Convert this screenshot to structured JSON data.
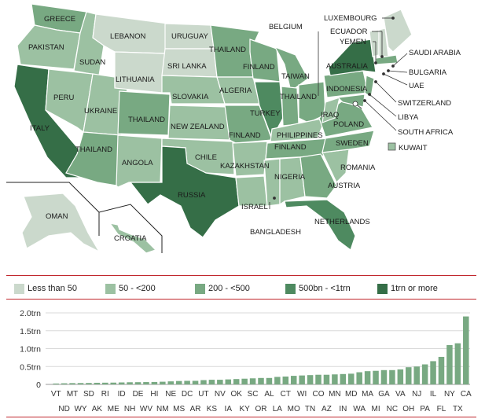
{
  "legend": {
    "items": [
      {
        "label": "Less than 50",
        "color": "#cbd9cc"
      },
      {
        "label": "50 - <200",
        "color": "#9cc1a2"
      },
      {
        "label": "200 - <500",
        "color": "#78a982"
      },
      {
        "label": "500bn - <1trn",
        "color": "#4e8a60"
      },
      {
        "label": "1trn or more",
        "color": "#356e47"
      }
    ]
  },
  "map": {
    "labels": [
      "GREECE",
      "LEBANON",
      "URUGUAY",
      "PAKISTAN",
      "SUDAN",
      "THAILAND",
      "FINLAND",
      "SRI LANKA",
      "LITHUANIA",
      "PERU",
      "UKRAINE",
      "SLOVAKIA",
      "ALGERIA",
      "TAIWAN",
      "THAILAND",
      "ITALY",
      "THAILAND",
      "NEW ZEALAND",
      "TURKEY",
      "FINLAND",
      "THAILAND",
      "ANGOLA",
      "CHILE",
      "KAZAKHSTAN",
      "RUSSIA",
      "NIGERIA",
      "PHILIPPINES",
      "FINLAND",
      "IRAQ",
      "POLAND",
      "SWEDEN",
      "ISRAEL",
      "AUSTRIA",
      "ROMANIA",
      "NETHERLANDS",
      "BANGLADESH",
      "OMAN",
      "CROATIA",
      "INDONESIA",
      "AUSTRALIA",
      "BELGIUM"
    ],
    "callouts": [
      "LUXEMBOURG",
      "ECUADOR",
      "YEMEN",
      "SAUDI ARABIA",
      "BULGARIA",
      "UAE",
      "SWITZERLAND",
      "LIBYA",
      "SOUTH AFRICA",
      "KUWAIT"
    ]
  },
  "chart_data": {
    "type": "bar",
    "categories": [
      "VT",
      "ND",
      "MT",
      "WY",
      "SD",
      "AK",
      "RI",
      "ME",
      "ID",
      "NH",
      "DE",
      "WV",
      "HI",
      "NM",
      "NE",
      "MS",
      "DC",
      "AR",
      "UT",
      "KS",
      "NV",
      "IA",
      "OK",
      "KY",
      "SC",
      "OR",
      "AL",
      "LA",
      "CT",
      "MO",
      "WI",
      "TN",
      "CO",
      "AZ",
      "MN",
      "IN",
      "MD",
      "WA",
      "MA",
      "MI",
      "GA",
      "NC",
      "VA",
      "OH",
      "NJ",
      "PA",
      "IL",
      "FL",
      "NY",
      "TX",
      "CA"
    ],
    "values": [
      0.025,
      0.031,
      0.036,
      0.038,
      0.04,
      0.045,
      0.048,
      0.05,
      0.055,
      0.06,
      0.062,
      0.065,
      0.068,
      0.075,
      0.085,
      0.095,
      0.1,
      0.1,
      0.12,
      0.13,
      0.13,
      0.14,
      0.15,
      0.16,
      0.17,
      0.18,
      0.18,
      0.21,
      0.22,
      0.24,
      0.25,
      0.26,
      0.27,
      0.27,
      0.28,
      0.29,
      0.3,
      0.34,
      0.37,
      0.38,
      0.4,
      0.4,
      0.42,
      0.48,
      0.5,
      0.56,
      0.65,
      0.77,
      1.1,
      1.15,
      1.9
    ],
    "yticks": [
      "2.0trn",
      "1.5trn",
      "1.0trn",
      "0.5trn",
      "0"
    ],
    "ylim": [
      0,
      2.0
    ],
    "bar_color": "#78a982",
    "grid": true
  }
}
